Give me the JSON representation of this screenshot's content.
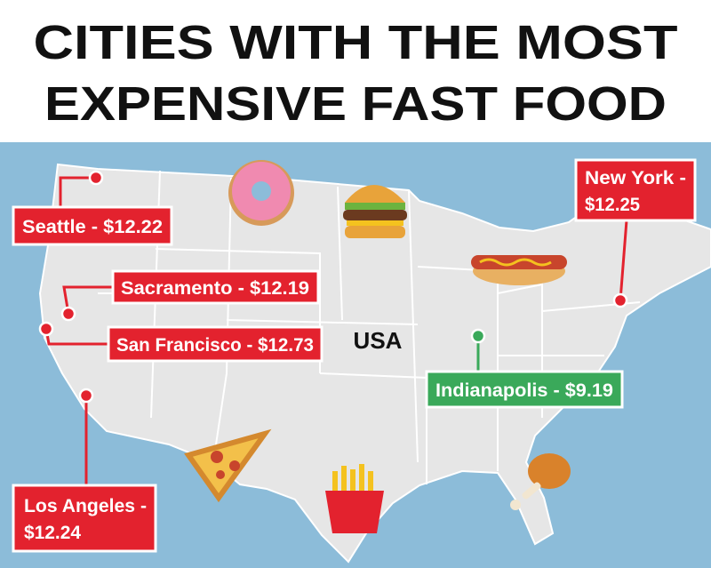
{
  "header": {
    "title": [
      "CITIES WITH THE MOST",
      "EXPENSIVE FAST FOOD"
    ]
  },
  "map": {
    "country_label": "USA",
    "cities": [
      {
        "label": [
          "Seattle - $12.22"
        ]
      },
      {
        "label": [
          "Sacramento - $12.19"
        ]
      },
      {
        "label": [
          "San Francisco - $12.73"
        ]
      },
      {
        "label": [
          "Los Angeles -",
          "$12.24"
        ]
      },
      {
        "label": [
          "New York -",
          "$12.25"
        ]
      },
      {
        "label": [
          "Indianapolis - $9.19"
        ]
      }
    ]
  }
}
